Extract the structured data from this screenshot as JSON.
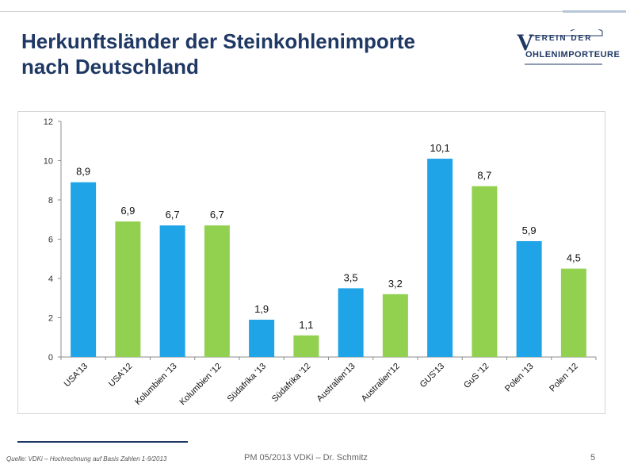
{
  "slide": {
    "title_line1": "Herkunftsländer der Steinkohlenimporte",
    "title_line2": "nach Deutschland",
    "logo_top": "EREIN DER",
    "logo_bottom": "OHLENIMPORTEURE",
    "logo_letter": "V",
    "source": "Quelle: VDKi – Hochrechnung auf Basis Zahlen 1-9/2013",
    "footer": "PM 05/2013 VDKi – Dr. Schmitz",
    "page_number": "5"
  },
  "colors": {
    "blue": "#1fa4e8",
    "green": "#92d050",
    "title": "#1f3864"
  },
  "chart_data": {
    "type": "bar",
    "title": "",
    "xlabel": "",
    "ylabel": "",
    "ylim": [
      0,
      12
    ],
    "yticks": [
      0,
      2,
      4,
      6,
      8,
      10,
      12
    ],
    "categories": [
      "USA'13",
      "USA'12",
      "Kolumbien '13",
      "Kolumbien '12",
      "Südafrika '13",
      "Südafrika '12",
      "Australien'13",
      "Australien'12",
      "GUS'13",
      "GuS '12",
      "Polen '13",
      "Polen '12"
    ],
    "values": [
      8.9,
      6.9,
      6.7,
      6.7,
      1.9,
      1.1,
      3.5,
      3.2,
      10.1,
      8.7,
      5.9,
      4.5
    ],
    "labels": [
      "8,9",
      "6,9",
      "6,7",
      "6,7",
      "1,9",
      "1,1",
      "3,5",
      "3,2",
      "10,1",
      "8,7",
      "5,9",
      "4,5"
    ],
    "bar_colors": [
      "blue",
      "green",
      "blue",
      "green",
      "blue",
      "green",
      "blue",
      "green",
      "blue",
      "green",
      "blue",
      "green"
    ]
  }
}
